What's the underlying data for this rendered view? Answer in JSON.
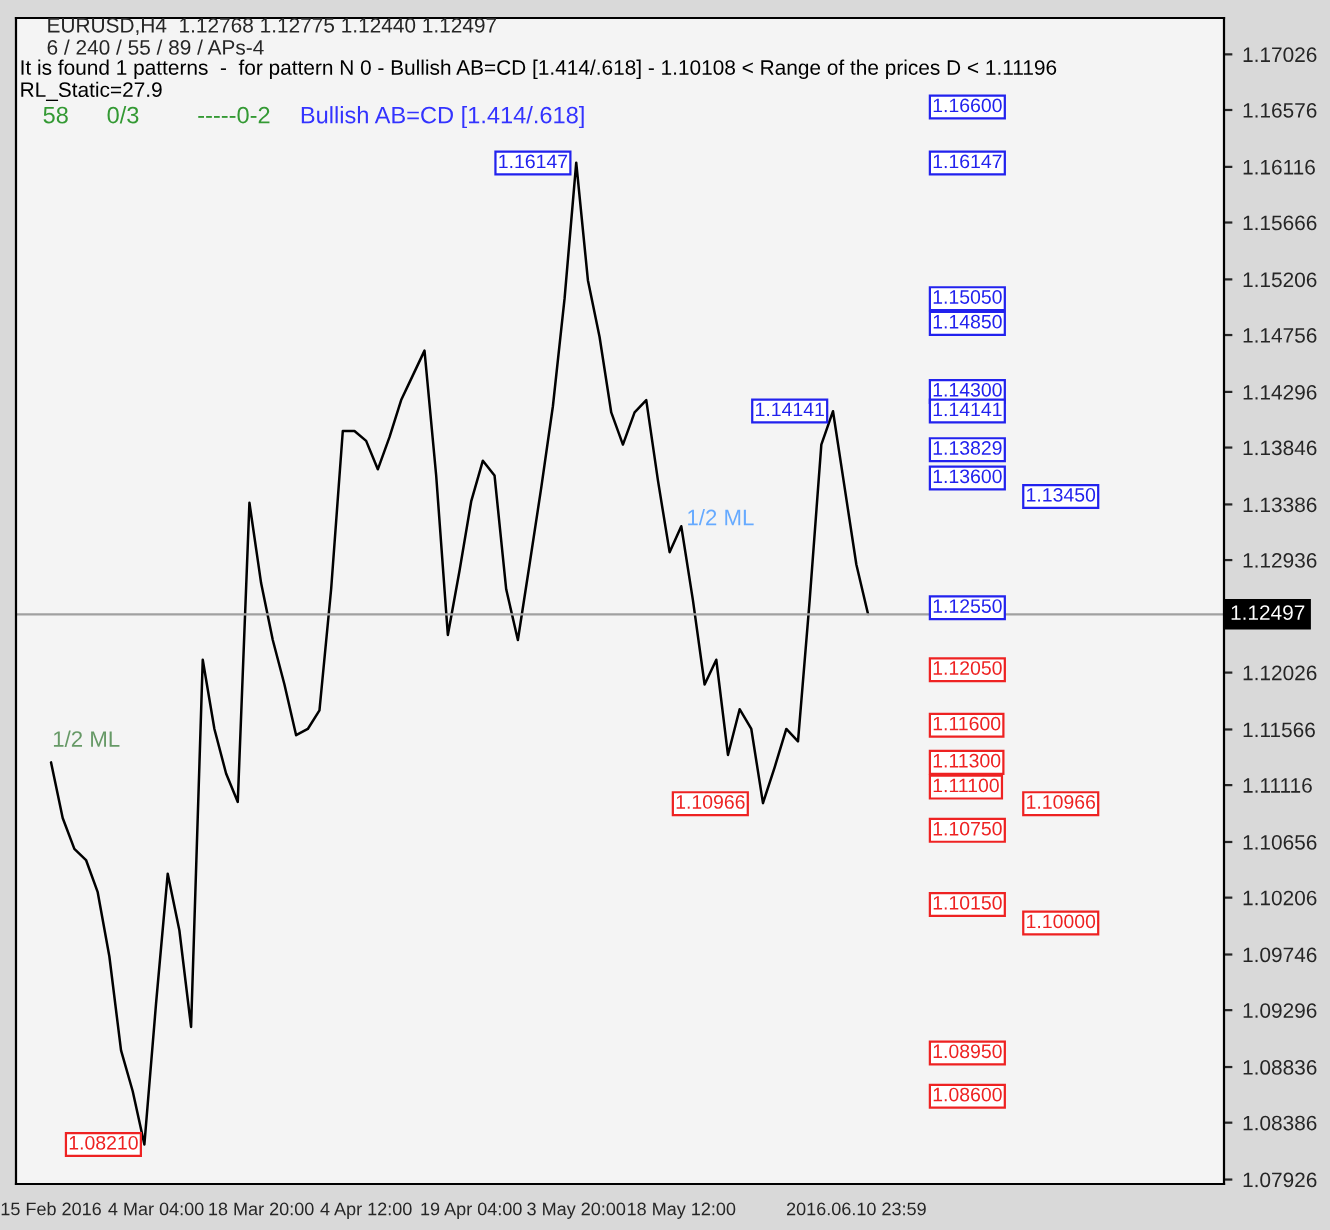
{
  "chart_data": {
    "type": "line",
    "title": "EURUSD,H4  1.12768 1.12775 1.12440 1.12497",
    "subtitle": "6 / 240 / 55 / 89 / APs-4",
    "categories": [
      "15 Feb 2016",
      null,
      null,
      null,
      null,
      null,
      null,
      null,
      null,
      "4 Mar 04:00",
      null,
      null,
      null,
      null,
      null,
      null,
      null,
      null,
      "18 Mar 20:00",
      null,
      null,
      null,
      null,
      null,
      null,
      null,
      null,
      "4 Apr 12:00",
      null,
      null,
      null,
      null,
      null,
      null,
      null,
      null,
      "19 Apr 04:00",
      null,
      null,
      null,
      null,
      null,
      null,
      null,
      null,
      "3 May 20:00",
      null,
      null,
      null,
      null,
      null,
      null,
      null,
      null,
      "18 May 12:00",
      null,
      null,
      null,
      null,
      null,
      null,
      null,
      null,
      null,
      null,
      null,
      null,
      null,
      null,
      "2016.06.10 23:59",
      null,
      null,
      null,
      null,
      null,
      null,
      null,
      null,
      null,
      null,
      null,
      null,
      null,
      null,
      null,
      null,
      null,
      null,
      null,
      null,
      null,
      null,
      null,
      null,
      null,
      null,
      null,
      null,
      null,
      null,
      null
    ],
    "series": [
      {
        "color": "#000000",
        "values": [
          1.113,
          1.1085,
          1.106,
          1.1051,
          1.1025,
          1.0973,
          1.0897,
          1.0864,
          1.0821,
          1.0935,
          1.104,
          1.0994,
          1.0916,
          1.1213,
          1.1157,
          1.1121,
          1.1098,
          1.134,
          1.1275,
          1.1229,
          1.1193,
          1.1152,
          1.1157,
          1.1172,
          1.127,
          1.1398,
          1.1398,
          1.139,
          1.1367,
          1.1393,
          1.1423,
          1.1443,
          1.1463,
          1.1362,
          1.1233,
          1.1285,
          1.1341,
          1.1374,
          1.1362,
          1.127,
          1.1229,
          1.129,
          1.1352,
          1.1418,
          1.1505,
          1.1615,
          1.152,
          1.1474,
          1.1413,
          1.1387,
          1.1413,
          1.1423,
          1.1358,
          1.13,
          1.1321,
          1.1261,
          1.1193,
          1.1213,
          1.1136,
          1.1173,
          1.1157,
          1.1097,
          1.1126,
          1.1157,
          1.1147,
          1.1261,
          1.1387,
          1.1414,
          1.1352,
          1.129,
          1.125,
          null,
          null,
          null,
          null,
          null,
          null,
          null,
          null,
          null,
          null,
          null,
          null,
          null,
          null,
          null,
          null,
          null,
          null,
          null,
          null,
          null,
          null,
          null,
          null,
          null,
          null,
          null,
          null,
          null,
          null
        ]
      }
    ],
    "ylim": [
      1.0789,
      1.1732
    ],
    "yticks": [
      1.07926,
      1.08386,
      1.08836,
      1.09296,
      1.09746,
      1.10206,
      1.10656,
      1.11116,
      1.11566,
      1.12026,
      1.12936,
      1.13386,
      1.13846,
      1.14296,
      1.14756,
      1.15206,
      1.15666,
      1.16116,
      1.16576,
      1.17026
    ],
    "ref_lines": [
      {
        "axis": "y",
        "value": 1.12497,
        "label": "1.12497",
        "color": "#a0a0a0"
      }
    ],
    "grid": false,
    "legend": false,
    "annotations": [
      "It is found 1 patterns  -  for pattern N 0 - Bullish AB=CD [1.414/.618] - 1.10108 < Range of the prices D < 1.11196",
      "RL_Static=27.9",
      "58",
      "0/3",
      "-----0-2",
      "Bullish AB=CD [1.414/.618]",
      "1/2 ML",
      "1/2 ML",
      "1.16147",
      "1.14141",
      "1.10966",
      "1.08210",
      "1.16600",
      "1.16147",
      "1.15050",
      "1.14850",
      "1.14300",
      "1.14141",
      "1.13829",
      "1.13600",
      "1.13450",
      "1.12550",
      "1.12050",
      "1.11600",
      "1.11300",
      "1.11100",
      "1.10966",
      "1.10750",
      "1.10150",
      "1.10000",
      "1.08950",
      "1.08600"
    ]
  }
}
